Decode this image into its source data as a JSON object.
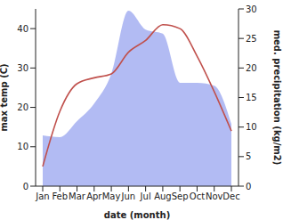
{
  "chart_data": {
    "type": "line",
    "xlabel": "date (month)",
    "ylabel": "max temp (C)",
    "y2label": "med. precipitation (kg/m2)",
    "categories": [
      "Jan",
      "Feb",
      "Mar",
      "Apr",
      "May",
      "Jun",
      "Jul",
      "Aug",
      "Sep",
      "Oct",
      "Nov",
      "Dec"
    ],
    "series": [
      {
        "name": "med. precipitation",
        "type": "area",
        "axis": "y2",
        "color": "#aab4f2",
        "values": [
          8.6,
          8.3,
          11,
          14,
          19,
          29.7,
          26.5,
          25.8,
          17.5,
          17.5,
          17,
          10.5
        ]
      },
      {
        "name": "max temp",
        "type": "line",
        "color": "#c0504c",
        "values": [
          5,
          19,
          26,
          27.5,
          28.5,
          34,
          37,
          41,
          40,
          33,
          24,
          14
        ]
      }
    ],
    "ylim": [
      0,
      45
    ],
    "yticks": [
      0,
      10,
      20,
      30,
      40
    ],
    "y2lim": [
      0,
      30
    ],
    "y2ticks": [
      0,
      5,
      10,
      15,
      20,
      25,
      30
    ],
    "grid": false
  }
}
